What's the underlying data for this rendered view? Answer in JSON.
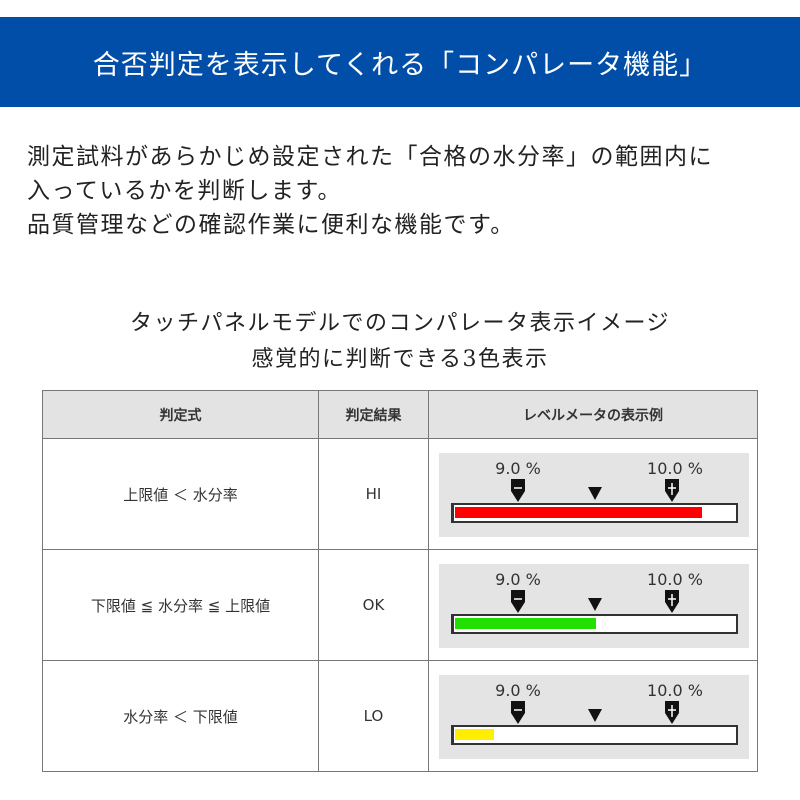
{
  "header": {
    "title": "合否判定を表示してくれる「コンパレータ機能」"
  },
  "intro": [
    "測定試料があらかじめ設定された「合格の水分率」の範囲内に",
    "入っているかを判断します。",
    "品質管理などの確認作業に便利な機能です。"
  ],
  "caption": {
    "line1": "タッチパネルモデルでのコンパレータ表示イメージ",
    "line2": "感覚的に判断できる3色表示"
  },
  "table": {
    "headers": [
      "判定式",
      "判定結果",
      "レベルメータの表示例"
    ],
    "rows": [
      {
        "formula": "上限値 ＜ 水分率",
        "result": "HI",
        "low_label": "9.0 %",
        "high_label": "10.0 %",
        "fill_fraction": 0.88,
        "fill_color": "#ff0000"
      },
      {
        "formula": "下限値 ≦ 水分率 ≦ 上限値",
        "result": "OK",
        "low_label": "9.0 %",
        "high_label": "10.0 %",
        "fill_fraction": 0.5,
        "fill_color": "#22e000"
      },
      {
        "formula": "水分率 ＜ 下限値",
        "result": "LO",
        "low_label": "9.0 %",
        "high_label": "10.0 %",
        "fill_fraction": 0.14,
        "fill_color": "#ffee00"
      }
    ]
  }
}
